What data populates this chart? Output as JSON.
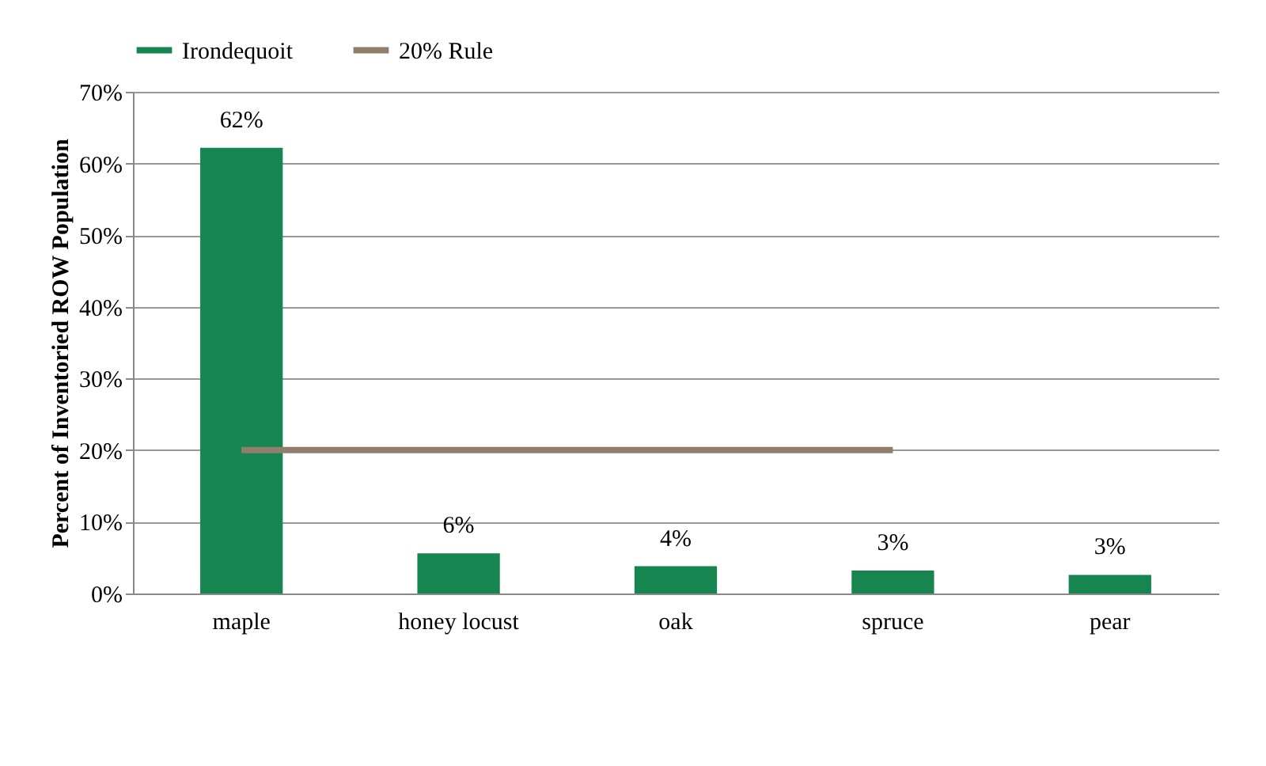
{
  "chart_data": {
    "type": "bar",
    "ylabel": "Percent of Inventoried ROW  Population",
    "categories": [
      "maple",
      "honey locust",
      "oak",
      "spruce",
      "pear"
    ],
    "series": [
      {
        "name": "Irondequoit",
        "color": "#168550",
        "values": [
          62.2,
          5.6,
          3.8,
          3.2,
          2.6
        ],
        "value_labels": [
          "62%",
          "6%",
          "4%",
          "3%",
          "3%"
        ]
      },
      {
        "name": "20% Rule",
        "type": "line",
        "color": "#8f7f6c",
        "values": [
          20,
          20,
          20,
          20,
          null
        ]
      }
    ],
    "ylim": [
      0,
      70
    ],
    "yticks": [
      {
        "value": 0,
        "label": "0%"
      },
      {
        "value": 10,
        "label": "10%"
      },
      {
        "value": 20,
        "label": "20%"
      },
      {
        "value": 30,
        "label": "30%"
      },
      {
        "value": 40,
        "label": "40%"
      },
      {
        "value": 50,
        "label": "50%"
      },
      {
        "value": 60,
        "label": "60%"
      },
      {
        "value": 70,
        "label": "70%"
      }
    ],
    "grid": "y",
    "legend": "top"
  }
}
